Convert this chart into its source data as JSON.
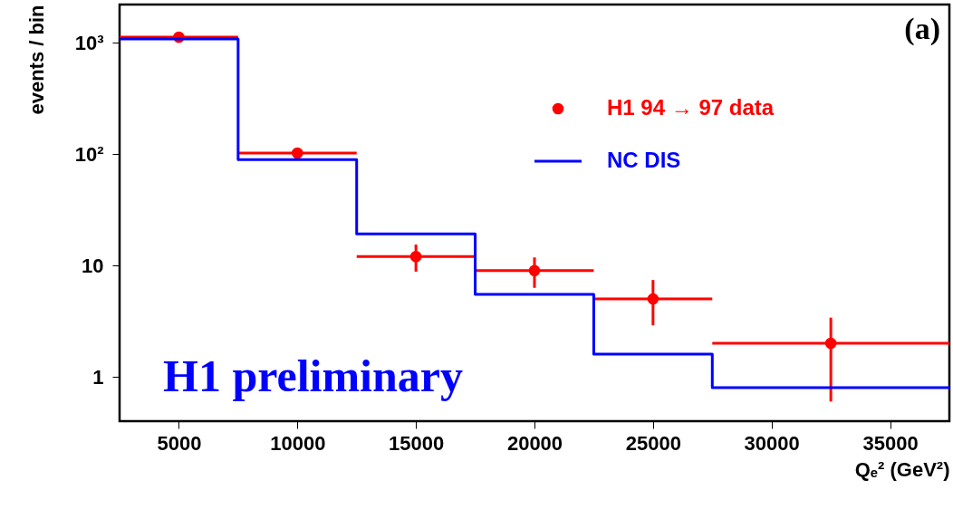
{
  "chart_data": {
    "type": "scatter",
    "xlabel": "Qₑ²  (GeV²)",
    "ylabel": "events / bin",
    "annotations": [
      "(a)",
      "H1 preliminary"
    ],
    "series": [
      {
        "name": "H1 94 → 97 data",
        "color": "#ff0000",
        "x": [
          5000,
          10000,
          15000,
          20000,
          25000,
          32500
        ],
        "values": [
          1120,
          102,
          12,
          9,
          5,
          2
        ],
        "errors": [
          null,
          null,
          [
            8.8,
            15.4
          ],
          [
            6.3,
            11.8
          ],
          [
            2.9,
            7.4
          ],
          [
            0.6,
            3.4
          ]
        ],
        "xerrors": [
          2500,
          2500,
          2500,
          2500,
          2500,
          5000
        ]
      },
      {
        "name": "NC DIS",
        "type": "step",
        "marker": "none",
        "color": "#0000ff",
        "x": [
          2500,
          7500,
          12500,
          17500,
          22500,
          27500,
          37500
        ],
        "values": [
          1080,
          89,
          19.2,
          5.5,
          1.6,
          0.8,
          0.8
        ]
      }
    ],
    "xlim": [
      2500,
      37500
    ],
    "xticks": [
      5000,
      10000,
      15000,
      20000,
      25000,
      30000,
      35000
    ],
    "ylim": [
      0.4,
      2200
    ],
    "yticks": [
      1,
      10,
      {
        "value": 100,
        "label": "10²"
      },
      {
        "value": 1000,
        "label": "10³"
      }
    ],
    "log": "y",
    "grid": false,
    "legend": "top right",
    "marker": "circle",
    "line_style": "solid"
  }
}
